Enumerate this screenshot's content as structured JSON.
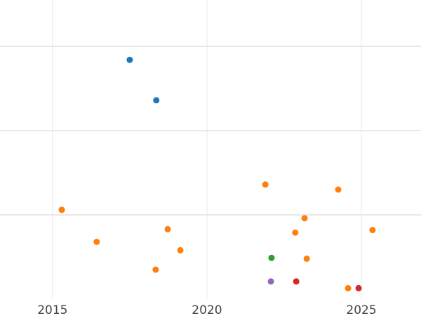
{
  "chart_data": {
    "type": "scatter",
    "title": "",
    "xlabel": "",
    "ylabel": "",
    "xlim": [
      2013.3,
      2026.93
    ],
    "ylim": [
      0,
      3.55
    ],
    "x_ticks": [
      2015,
      2020,
      2025
    ],
    "x_tick_labels": [
      "2015",
      "2020",
      "2025"
    ],
    "y_gridlines": [
      1,
      2,
      3
    ],
    "grid": true,
    "legend": "none",
    "series": [
      {
        "color": "#1f77b4",
        "points": [
          [
            2017.5,
            2.84
          ],
          [
            2018.36,
            2.36
          ]
        ]
      },
      {
        "color": "#ff7f0e",
        "points": [
          [
            2021.89,
            1.36
          ],
          [
            2024.25,
            1.3
          ],
          [
            2015.3,
            1.06
          ],
          [
            2023.16,
            0.96
          ],
          [
            2018.73,
            0.83
          ],
          [
            2022.86,
            0.79
          ],
          [
            2025.36,
            0.82
          ],
          [
            2016.43,
            0.68
          ],
          [
            2019.14,
            0.58
          ],
          [
            2023.23,
            0.48
          ],
          [
            2018.34,
            0.35
          ],
          [
            2024.57,
            0.13
          ]
        ]
      },
      {
        "color": "#2ca02c",
        "points": [
          [
            2022.09,
            0.49
          ]
        ]
      },
      {
        "color": "#9467bd",
        "points": [
          [
            2022.07,
            0.21
          ]
        ]
      },
      {
        "color": "#d62728",
        "points": [
          [
            2022.89,
            0.21
          ],
          [
            2024.91,
            0.13
          ]
        ]
      }
    ]
  }
}
